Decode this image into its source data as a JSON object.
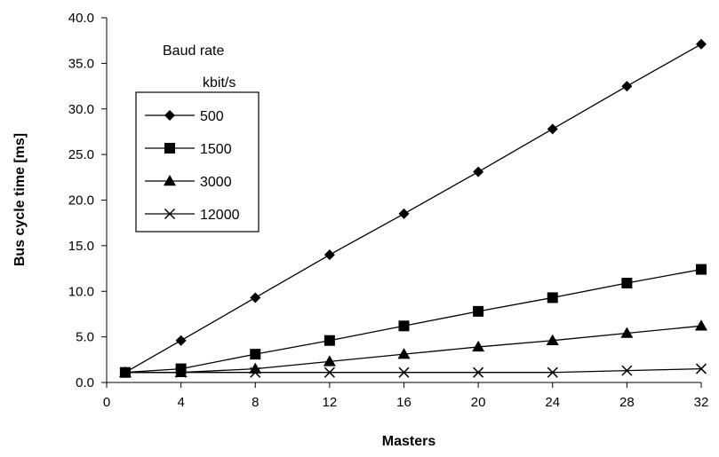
{
  "chart_data": {
    "type": "line",
    "title": "",
    "xlabel": "Masters",
    "ylabel": "Bus cycle time [ms]",
    "xlim": [
      0,
      32
    ],
    "ylim": [
      0,
      40
    ],
    "xticks": [
      0,
      4,
      8,
      12,
      16,
      20,
      24,
      28,
      32
    ],
    "yticks": [
      0.0,
      5.0,
      10.0,
      15.0,
      20.0,
      25.0,
      30.0,
      35.0,
      40.0
    ],
    "ytick_labels": [
      "0.0",
      "5.0",
      "10.0",
      "15.0",
      "20.0",
      "25.0",
      "30.0",
      "35.0",
      "40.0"
    ],
    "grid": false,
    "legend": {
      "title_line1": "Baud rate",
      "title_line2": "kbit/s",
      "placement": "top-left"
    },
    "x": [
      1,
      4,
      8,
      12,
      16,
      20,
      24,
      28,
      32
    ],
    "series": [
      {
        "name": "500",
        "marker": "diamond",
        "values": [
          1.1,
          4.6,
          9.3,
          14.0,
          18.5,
          23.1,
          27.8,
          32.5,
          37.1
        ]
      },
      {
        "name": "1500",
        "marker": "square",
        "values": [
          1.1,
          1.5,
          3.1,
          4.6,
          6.2,
          7.8,
          9.3,
          10.9,
          12.4
        ]
      },
      {
        "name": "3000",
        "marker": "triangle",
        "values": [
          1.1,
          1.1,
          1.5,
          2.3,
          3.1,
          3.9,
          4.6,
          5.4,
          6.2
        ]
      },
      {
        "name": "12000",
        "marker": "x",
        "values": [
          1.1,
          1.1,
          1.1,
          1.1,
          1.1,
          1.1,
          1.1,
          1.3,
          1.5
        ]
      }
    ]
  }
}
